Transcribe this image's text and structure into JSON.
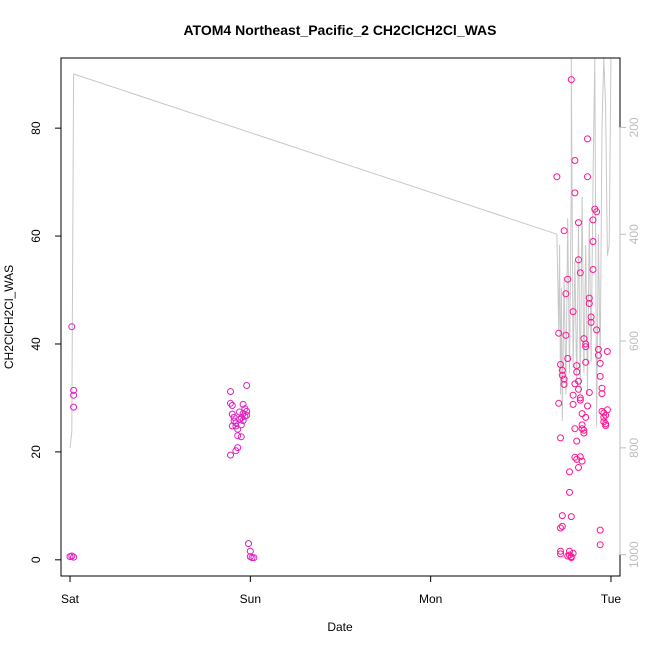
{
  "chart_data": {
    "type": "scatter",
    "title": "ATOM4 Northeast_Pacific_2 CH2ClCH2Cl_WAS",
    "xlabel": "Date",
    "ylabel": "CH2ClCH2Cl_WAS",
    "x_ticks": [
      "Sat",
      "Sun",
      "Mon",
      "Tue"
    ],
    "y_ticks": [
      0,
      20,
      40,
      60,
      80
    ],
    "y_right_ticks": [
      200,
      400,
      600,
      800,
      1000
    ],
    "ylim": [
      -3,
      93
    ],
    "y_right_lim": [
      70,
      1040
    ],
    "x_unit": "days after Sat 00:00",
    "xlim": [
      -0.05,
      3.05
    ],
    "grid": false,
    "legend": "none",
    "colors": {
      "points": "#ff1493",
      "points_early": "#e020c0",
      "pressure_line": "#c8c8c8",
      "frame": "#000000",
      "right_axis": "#bdbdbd"
    },
    "series": [
      {
        "kind": "points",
        "values": [
          [
            0.01,
            43.2
          ],
          [
            0.02,
            31.4
          ],
          [
            0.02,
            30.5
          ],
          [
            0.02,
            28.3
          ],
          [
            0.0,
            0.6
          ],
          [
            0.02,
            0.5
          ],
          [
            0.01,
            0.7
          ],
          [
            0.89,
            31.2
          ],
          [
            0.89,
            29.0
          ],
          [
            0.9,
            28.6
          ],
          [
            0.9,
            27.0
          ],
          [
            0.91,
            26.4
          ],
          [
            0.92,
            25.4
          ],
          [
            0.92,
            24.8
          ],
          [
            0.93,
            24.2
          ],
          [
            0.93,
            23.0
          ],
          [
            0.94,
            27.4
          ],
          [
            0.94,
            26.0
          ],
          [
            0.95,
            25.0
          ],
          [
            0.95,
            22.8
          ],
          [
            0.96,
            28.8
          ],
          [
            0.96,
            27.1
          ],
          [
            0.97,
            26.6
          ],
          [
            0.97,
            28.0
          ],
          [
            0.98,
            27.5
          ],
          [
            0.98,
            26.8
          ],
          [
            0.98,
            32.3
          ],
          [
            0.92,
            20.2
          ],
          [
            0.93,
            20.8
          ],
          [
            0.89,
            19.4
          ],
          [
            0.9,
            24.8
          ],
          [
            0.91,
            25.7
          ],
          [
            0.95,
            26.3
          ],
          [
            0.96,
            25.8
          ],
          [
            0.99,
            3.0
          ],
          [
            1.0,
            1.6
          ],
          [
            1.0,
            0.6
          ],
          [
            1.01,
            0.4
          ],
          [
            1.02,
            0.4
          ],
          [
            2.7,
            71.0
          ],
          [
            2.71,
            42.0
          ],
          [
            2.71,
            29.0
          ],
          [
            2.72,
            22.6
          ],
          [
            2.72,
            36.2
          ],
          [
            2.73,
            35.1
          ],
          [
            2.73,
            34.2
          ],
          [
            2.74,
            33.5
          ],
          [
            2.74,
            32.5
          ],
          [
            2.74,
            61.0
          ],
          [
            2.75,
            49.3
          ],
          [
            2.75,
            41.6
          ],
          [
            2.76,
            52.0
          ],
          [
            2.76,
            37.3
          ],
          [
            2.72,
            1.6
          ],
          [
            2.72,
            1.1
          ],
          [
            2.73,
            6.2
          ],
          [
            2.73,
            8.2
          ],
          [
            2.72,
            5.9
          ],
          [
            2.77,
            16.3
          ],
          [
            2.77,
            12.5
          ],
          [
            2.78,
            89.0
          ],
          [
            2.79,
            46.0
          ],
          [
            2.8,
            74.0
          ],
          [
            2.8,
            68.0
          ],
          [
            2.82,
            62.5
          ],
          [
            2.82,
            55.6
          ],
          [
            2.83,
            53.2
          ],
          [
            2.81,
            36.0
          ],
          [
            2.81,
            34.8
          ],
          [
            2.82,
            33.1
          ],
          [
            2.82,
            31.6
          ],
          [
            2.83,
            30.0
          ],
          [
            2.83,
            29.6
          ],
          [
            2.84,
            27.1
          ],
          [
            2.84,
            25.0
          ],
          [
            2.84,
            24.3
          ],
          [
            2.85,
            23.5
          ],
          [
            2.85,
            41.0
          ],
          [
            2.86,
            40.0
          ],
          [
            2.86,
            39.5
          ],
          [
            2.86,
            36.6
          ],
          [
            2.87,
            71.0
          ],
          [
            2.87,
            78.0
          ],
          [
            2.88,
            48.5
          ],
          [
            2.88,
            47.5
          ],
          [
            2.89,
            45.0
          ],
          [
            2.89,
            44.0
          ],
          [
            2.9,
            63.0
          ],
          [
            2.9,
            59.0
          ],
          [
            2.9,
            53.8
          ],
          [
            2.91,
            65.0
          ],
          [
            2.92,
            64.5
          ],
          [
            2.92,
            42.6
          ],
          [
            2.93,
            39.0
          ],
          [
            2.93,
            37.9
          ],
          [
            2.94,
            36.4
          ],
          [
            2.94,
            34.0
          ],
          [
            2.95,
            31.8
          ],
          [
            2.95,
            30.8
          ],
          [
            2.95,
            27.5
          ],
          [
            2.96,
            27.2
          ],
          [
            2.96,
            26.4
          ],
          [
            2.96,
            25.6
          ],
          [
            2.97,
            25.2
          ],
          [
            2.97,
            24.9
          ],
          [
            2.97,
            26.8
          ],
          [
            2.98,
            27.8
          ],
          [
            2.98,
            38.6
          ],
          [
            2.8,
            19.0
          ],
          [
            2.81,
            18.6
          ],
          [
            2.82,
            17.1
          ],
          [
            2.83,
            19.1
          ],
          [
            2.84,
            18.3
          ],
          [
            2.81,
            22.0
          ],
          [
            2.8,
            24.3
          ],
          [
            2.79,
            28.8
          ],
          [
            2.79,
            30.5
          ],
          [
            2.8,
            32.6
          ],
          [
            2.85,
            24.0
          ],
          [
            2.86,
            26.4
          ],
          [
            2.87,
            28.5
          ],
          [
            2.88,
            31.0
          ],
          [
            2.78,
            8.0
          ],
          [
            2.77,
            1.6
          ],
          [
            2.77,
            0.9
          ],
          [
            2.78,
            0.6
          ],
          [
            2.78,
            0.4
          ],
          [
            2.79,
            1.2
          ],
          [
            2.76,
            0.7
          ],
          [
            2.94,
            5.5
          ],
          [
            2.94,
            2.8
          ]
        ]
      },
      {
        "kind": "pressure_line",
        "axis": "right",
        "values": [
          [
            0.0,
            800
          ],
          [
            0.01,
            770
          ],
          [
            0.02,
            100
          ],
          [
            2.7,
            400
          ],
          [
            2.71,
            580
          ],
          [
            2.715,
            420
          ],
          [
            2.72,
            700
          ],
          [
            2.725,
            500
          ],
          [
            2.73,
            750
          ],
          [
            2.74,
            480
          ],
          [
            2.75,
            700
          ],
          [
            2.76,
            370
          ],
          [
            2.77,
            660
          ],
          [
            2.78,
            300
          ],
          [
            2.78,
            70
          ],
          [
            2.79,
            650
          ],
          [
            2.8,
            450
          ],
          [
            2.81,
            680
          ],
          [
            2.82,
            380
          ],
          [
            2.83,
            700
          ],
          [
            2.84,
            330
          ],
          [
            2.85,
            660
          ],
          [
            2.86,
            420
          ],
          [
            2.87,
            700
          ],
          [
            2.88,
            370
          ],
          [
            2.89,
            640
          ],
          [
            2.9,
            300
          ],
          [
            2.91,
            70
          ],
          [
            2.92,
            760
          ],
          [
            2.93,
            400
          ],
          [
            2.94,
            640
          ],
          [
            2.95,
            200
          ],
          [
            2.96,
            70
          ],
          [
            2.97,
            160
          ],
          [
            2.98,
            440
          ],
          [
            2.99,
            420
          ],
          [
            3.0,
            60
          ]
        ]
      }
    ]
  }
}
